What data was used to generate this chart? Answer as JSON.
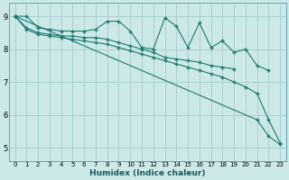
{
  "xlabel": "Humidex (Indice chaleur)",
  "bg_color": "#cce8e8",
  "line_color": "#1a7a6e",
  "grid_color": "#aad0d0",
  "xlim": [
    -0.5,
    23.5
  ],
  "ylim": [
    4.6,
    9.4
  ],
  "yticks": [
    5,
    6,
    7,
    8,
    9
  ],
  "xticks": [
    0,
    1,
    2,
    3,
    4,
    5,
    6,
    7,
    8,
    9,
    10,
    11,
    12,
    13,
    14,
    15,
    16,
    17,
    18,
    19,
    20,
    21,
    22,
    23
  ],
  "line_noisy": [
    9.0,
    9.0,
    8.65,
    8.6,
    8.55,
    8.55,
    8.55,
    8.6,
    8.85,
    8.85,
    8.55,
    8.05,
    8.0,
    8.95,
    8.7,
    8.05,
    8.8,
    8.05,
    8.25,
    7.9,
    8.0,
    7.5,
    7.35,
    null
  ],
  "line_smooth_short": [
    9.0,
    8.65,
    8.5,
    8.45,
    8.4,
    8.4,
    8.35,
    8.35,
    8.3,
    8.2,
    8.1,
    8.0,
    7.9,
    7.75,
    7.7,
    7.65,
    7.6,
    7.5,
    7.45,
    7.4,
    null,
    null,
    null,
    null
  ],
  "line_long_decline": [
    9.0,
    8.6,
    8.45,
    8.4,
    8.35,
    8.3,
    8.25,
    8.2,
    8.15,
    8.05,
    7.95,
    7.85,
    7.75,
    7.65,
    7.55,
    7.45,
    7.35,
    7.25,
    7.15,
    7.0,
    6.85,
    6.65,
    5.85,
    5.15
  ],
  "line_steep": [
    9.0,
    null,
    null,
    null,
    null,
    null,
    null,
    null,
    null,
    null,
    null,
    null,
    null,
    null,
    null,
    null,
    null,
    null,
    null,
    null,
    null,
    5.85,
    5.35,
    5.1
  ]
}
